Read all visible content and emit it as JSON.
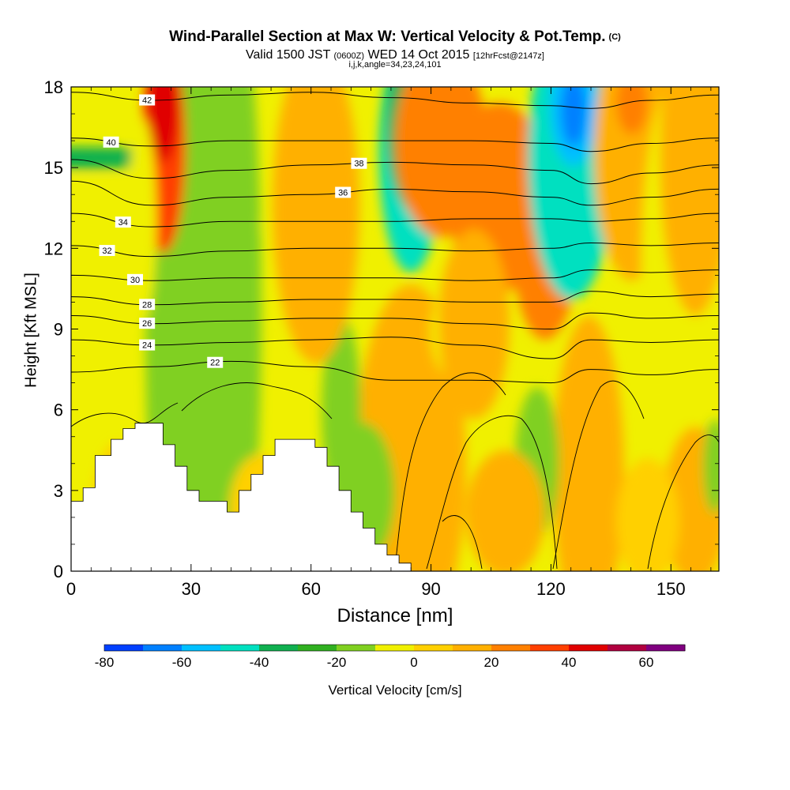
{
  "title": {
    "main": "Wind-Parallel Section at Max W: Vertical Velocity & Pot.Temp.",
    "copyright": "(C)",
    "valid_prefix": "Valid 1500 JST",
    "valid_utc": "(0600Z)",
    "valid_date": "WED 14 Oct 2015",
    "forecast": "[12hrFcst@2147z]",
    "params": "i,j,k,angle=34,23,24,101"
  },
  "chart_data": {
    "type": "heatmap",
    "xlabel": "Distance [nm]",
    "ylabel": "Height [Kft MSL]",
    "xlim": [
      0,
      162
    ],
    "ylim": [
      0,
      18
    ],
    "x_ticks": [
      0,
      30,
      60,
      90,
      120,
      150
    ],
    "y_ticks": [
      0,
      3,
      6,
      9,
      12,
      15,
      18
    ],
    "colorbar": {
      "label": "Vertical Velocity [cm/s]",
      "levels": [
        -80,
        -70,
        -60,
        -50,
        -40,
        -30,
        -20,
        -10,
        0,
        10,
        20,
        30,
        40,
        50,
        60,
        70
      ],
      "colors": [
        "#0040ff",
        "#0080ff",
        "#00c0ff",
        "#00e0c0",
        "#10b050",
        "#30b020",
        "#80d020",
        "#f0f000",
        "#ffd000",
        "#ffb000",
        "#ff8000",
        "#ff4000",
        "#e00000",
        "#b00040",
        "#800080"
      ],
      "tick_labels": [
        "-80",
        "-60",
        "-40",
        "-20",
        "0",
        "20",
        "40",
        "60"
      ]
    },
    "terrain": [
      [
        0,
        2.6
      ],
      [
        3,
        2.6
      ],
      [
        3,
        3.1
      ],
      [
        6,
        3.1
      ],
      [
        6,
        4.3
      ],
      [
        10,
        4.3
      ],
      [
        10,
        4.9
      ],
      [
        13,
        4.9
      ],
      [
        13,
        5.3
      ],
      [
        16,
        5.3
      ],
      [
        16,
        5.5
      ],
      [
        23,
        5.5
      ],
      [
        23,
        4.7
      ],
      [
        26,
        4.7
      ],
      [
        26,
        3.9
      ],
      [
        29,
        3.9
      ],
      [
        29,
        3.0
      ],
      [
        32,
        3.0
      ],
      [
        32,
        2.6
      ],
      [
        39,
        2.6
      ],
      [
        39,
        2.2
      ],
      [
        42,
        2.2
      ],
      [
        42,
        3.0
      ],
      [
        45,
        3.0
      ],
      [
        45,
        3.6
      ],
      [
        48,
        3.6
      ],
      [
        48,
        4.3
      ],
      [
        51,
        4.3
      ],
      [
        51,
        4.9
      ],
      [
        61,
        4.9
      ],
      [
        61,
        4.6
      ],
      [
        64,
        4.6
      ],
      [
        64,
        3.9
      ],
      [
        67,
        3.9
      ],
      [
        67,
        3.0
      ],
      [
        70,
        3.0
      ],
      [
        70,
        2.2
      ],
      [
        73,
        2.2
      ],
      [
        73,
        1.6
      ],
      [
        76,
        1.6
      ],
      [
        76,
        1.0
      ],
      [
        79,
        1.0
      ],
      [
        79,
        0.6
      ],
      [
        82,
        0.6
      ],
      [
        82,
        0.3
      ],
      [
        85,
        0.3
      ],
      [
        85,
        0
      ]
    ],
    "isentropes": [
      {
        "label": "42",
        "label_x": 19,
        "points": [
          [
            0,
            17.8
          ],
          [
            20,
            17.5
          ],
          [
            40,
            17.7
          ],
          [
            60,
            17.8
          ],
          [
            80,
            17.6
          ],
          [
            100,
            17.4
          ],
          [
            120,
            17.3
          ],
          [
            130,
            17.2
          ],
          [
            145,
            17.5
          ],
          [
            162,
            17.7
          ]
        ]
      },
      {
        "label": "40",
        "label_x": 10,
        "points": [
          [
            0,
            16.1
          ],
          [
            20,
            15.8
          ],
          [
            40,
            16.0
          ],
          [
            60,
            16.0
          ],
          [
            80,
            16.0
          ],
          [
            100,
            16.0
          ],
          [
            120,
            15.9
          ],
          [
            130,
            15.6
          ],
          [
            145,
            15.9
          ],
          [
            162,
            16.1
          ]
        ]
      },
      {
        "label": "38",
        "label_x": 72,
        "points": [
          [
            0,
            15.3
          ],
          [
            20,
            14.6
          ],
          [
            40,
            14.9
          ],
          [
            60,
            15.1
          ],
          [
            80,
            15.2
          ],
          [
            100,
            15.1
          ],
          [
            120,
            14.9
          ],
          [
            130,
            14.4
          ],
          [
            145,
            14.8
          ],
          [
            162,
            15.1
          ]
        ]
      },
      {
        "label": "36",
        "label_x": 68,
        "points": [
          [
            0,
            14.5
          ],
          [
            20,
            13.6
          ],
          [
            40,
            13.9
          ],
          [
            60,
            14.0
          ],
          [
            80,
            14.2
          ],
          [
            100,
            14.1
          ],
          [
            120,
            13.9
          ],
          [
            130,
            13.6
          ],
          [
            145,
            13.9
          ],
          [
            162,
            14.2
          ]
        ]
      },
      {
        "label": "34",
        "label_x": 13,
        "points": [
          [
            0,
            13.3
          ],
          [
            20,
            12.8
          ],
          [
            40,
            13.0
          ],
          [
            60,
            13.0
          ],
          [
            80,
            13.0
          ],
          [
            100,
            13.1
          ],
          [
            120,
            13.1
          ],
          [
            130,
            13.0
          ],
          [
            145,
            13.1
          ],
          [
            162,
            13.3
          ]
        ]
      },
      {
        "label": "32",
        "label_x": 9,
        "points": [
          [
            0,
            12.1
          ],
          [
            20,
            11.7
          ],
          [
            40,
            11.9
          ],
          [
            60,
            12.0
          ],
          [
            80,
            12.0
          ],
          [
            100,
            11.9
          ],
          [
            120,
            12.0
          ],
          [
            130,
            12.2
          ],
          [
            145,
            12.1
          ],
          [
            162,
            12.2
          ]
        ]
      },
      {
        "label": "30",
        "label_x": 16,
        "points": [
          [
            0,
            11.0
          ],
          [
            20,
            10.8
          ],
          [
            40,
            10.9
          ],
          [
            60,
            10.9
          ],
          [
            80,
            10.9
          ],
          [
            100,
            10.8
          ],
          [
            120,
            10.9
          ],
          [
            130,
            11.2
          ],
          [
            145,
            11.1
          ],
          [
            162,
            11.2
          ]
        ]
      },
      {
        "label": "28",
        "label_x": 19,
        "points": [
          [
            0,
            10.2
          ],
          [
            20,
            9.9
          ],
          [
            40,
            10.0
          ],
          [
            60,
            10.1
          ],
          [
            80,
            10.1
          ],
          [
            100,
            10.0
          ],
          [
            120,
            10.0
          ],
          [
            130,
            10.4
          ],
          [
            145,
            10.2
          ],
          [
            162,
            10.3
          ]
        ]
      },
      {
        "label": "26",
        "label_x": 19,
        "points": [
          [
            0,
            9.5
          ],
          [
            20,
            9.2
          ],
          [
            40,
            9.3
          ],
          [
            60,
            9.4
          ],
          [
            80,
            9.4
          ],
          [
            100,
            9.2
          ],
          [
            120,
            9.0
          ],
          [
            130,
            9.6
          ],
          [
            145,
            9.4
          ],
          [
            162,
            9.5
          ]
        ]
      },
      {
        "label": "24",
        "label_x": 19,
        "points": [
          [
            0,
            8.6
          ],
          [
            20,
            8.4
          ],
          [
            40,
            8.5
          ],
          [
            60,
            8.6
          ],
          [
            80,
            8.7
          ],
          [
            100,
            8.4
          ],
          [
            120,
            7.9
          ],
          [
            130,
            8.6
          ],
          [
            145,
            8.5
          ],
          [
            162,
            8.6
          ]
        ]
      },
      {
        "label": "22",
        "label_x": 36,
        "points": [
          [
            0,
            7.4
          ],
          [
            20,
            7.6
          ],
          [
            40,
            7.8
          ],
          [
            60,
            7.6
          ],
          [
            80,
            7.1
          ],
          [
            100,
            7.1
          ],
          [
            120,
            7.0
          ],
          [
            130,
            7.5
          ],
          [
            145,
            7.3
          ],
          [
            162,
            7.5
          ]
        ]
      }
    ]
  }
}
